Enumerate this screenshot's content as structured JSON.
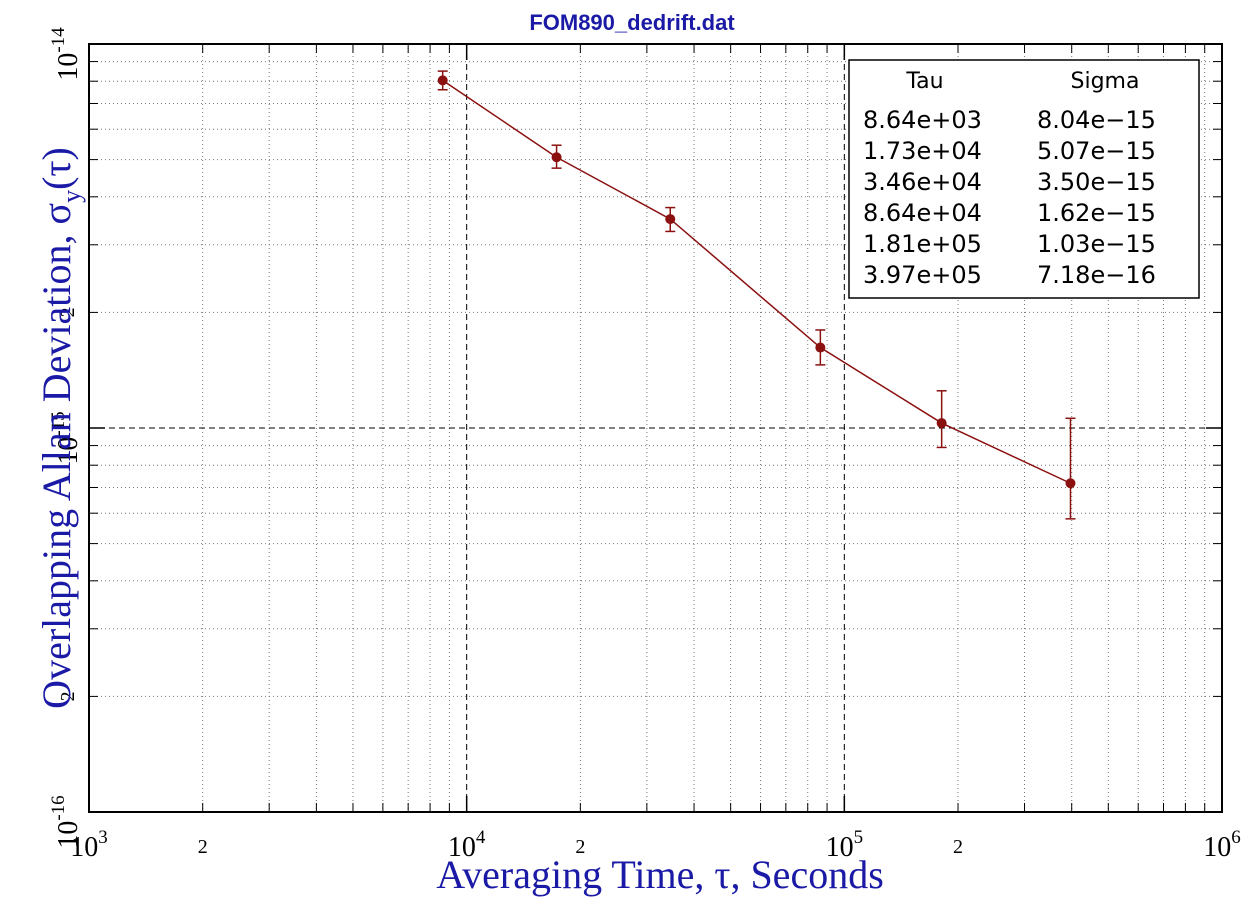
{
  "chart_data": {
    "type": "scatter",
    "title": "",
    "subtitle": "FOM890_dedrift.dat",
    "xlabel": "Averaging Time, τ, Seconds",
    "ylabel_main": "Overlapping Allan Deviation, σ",
    "ylabel_sub": "y",
    "ylabel_tail": "(τ)",
    "x_scale": "log",
    "y_scale": "log",
    "xlim": [
      1000,
      1000000
    ],
    "ylim": [
      1e-16,
      1e-14
    ],
    "grid": true,
    "x_tick_labels": [
      {
        "value": 1000,
        "base": "10",
        "exp": "3"
      },
      {
        "value": 2000,
        "base": "2",
        "exp": ""
      },
      {
        "value": 10000,
        "base": "10",
        "exp": "4"
      },
      {
        "value": 20000,
        "base": "2",
        "exp": ""
      },
      {
        "value": 100000,
        "base": "10",
        "exp": "5"
      },
      {
        "value": 200000,
        "base": "2",
        "exp": ""
      },
      {
        "value": 1000000,
        "base": "10",
        "exp": "6"
      }
    ],
    "y_tick_labels": [
      {
        "value": 1e-16,
        "base": "10",
        "exp": "-16"
      },
      {
        "value": 2e-16,
        "base": "2",
        "exp": ""
      },
      {
        "value": 1e-15,
        "base": "10",
        "exp": "-15"
      },
      {
        "value": 2e-15,
        "base": "2",
        "exp": ""
      },
      {
        "value": 1e-14,
        "base": "10",
        "exp": "-14"
      }
    ],
    "series": [
      {
        "color": "#8b1010",
        "x": [
          8640,
          17300,
          34600,
          86400,
          181000,
          397000
        ],
        "y": [
          8.04e-15,
          5.07e-15,
          3.5e-15,
          1.62e-15,
          1.03e-15,
          7.18e-16
        ],
        "err_low": [
          7.6e-15,
          4.75e-15,
          3.25e-15,
          1.46e-15,
          8.9e-16,
          5.8e-16
        ],
        "err_high": [
          8.5e-15,
          5.45e-15,
          3.75e-15,
          1.8e-15,
          1.25e-15,
          1.06e-15
        ]
      }
    ],
    "legend": {
      "placement": "top-right",
      "headers": [
        "Tau",
        "Sigma"
      ],
      "rows": [
        [
          "8.64e+03",
          "8.04e−15"
        ],
        [
          "1.73e+04",
          "5.07e−15"
        ],
        [
          "3.46e+04",
          "3.50e−15"
        ],
        [
          "8.64e+04",
          "1.62e−15"
        ],
        [
          "1.81e+05",
          "1.03e−15"
        ],
        [
          "3.97e+05",
          "7.18e−16"
        ]
      ]
    },
    "colors": {
      "title": "#1a1aa6",
      "axis_title": "#1a1aa6",
      "data": "#8b1010",
      "frame": "#000000"
    }
  }
}
